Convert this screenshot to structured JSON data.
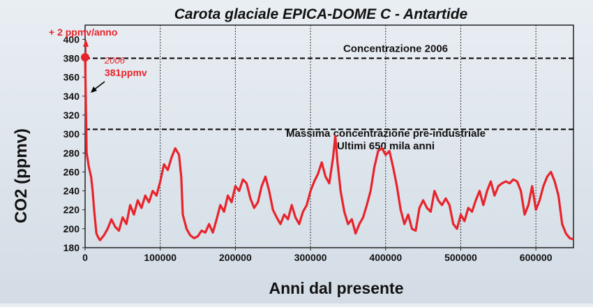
{
  "chart_data": {
    "type": "line",
    "title": "Carota glaciale EPICA-DOME C - Antartide",
    "xlabel": "Anni dal presente",
    "ylabel": "CO2 (ppmv)",
    "xlim": [
      0,
      650000
    ],
    "ylim": [
      180,
      400
    ],
    "x_ticks": [
      0,
      100000,
      200000,
      300000,
      400000,
      500000,
      600000
    ],
    "x_tick_labels": [
      "0",
      "100000",
      "200000",
      "300000",
      "400000",
      "500000",
      "600000"
    ],
    "y_ticks": [
      180,
      200,
      220,
      240,
      260,
      280,
      300,
      320,
      340,
      360,
      380,
      400
    ],
    "y_tick_labels": [
      "180",
      "200",
      "220",
      "240",
      "260",
      "280",
      "300",
      "320",
      "340",
      "360",
      "380",
      "400"
    ],
    "grid": "vertical dotted",
    "colors": {
      "series": "#e8232b",
      "reference": "#000000",
      "annotation": "#e8232b"
    },
    "series": [
      {
        "x": [
          0,
          2000,
          5000,
          8000,
          10000,
          12000,
          15000,
          18000,
          20000,
          25000,
          30000,
          35000,
          40000,
          45000,
          50000,
          55000,
          60000,
          65000,
          70000,
          75000,
          80000,
          85000,
          90000,
          95000,
          100000,
          105000,
          110000,
          115000,
          120000,
          125000,
          128000,
          130000,
          135000,
          140000,
          145000,
          150000,
          155000,
          160000,
          165000,
          170000,
          175000,
          180000,
          185000,
          190000,
          195000,
          200000,
          205000,
          210000,
          215000,
          220000,
          225000,
          230000,
          235000,
          240000,
          245000,
          250000,
          255000,
          260000,
          265000,
          270000,
          275000,
          280000,
          285000,
          290000,
          295000,
          300000,
          305000,
          310000,
          315000,
          320000,
          325000,
          330000,
          333000,
          336000,
          340000,
          345000,
          350000,
          355000,
          360000,
          365000,
          370000,
          375000,
          380000,
          385000,
          390000,
          395000,
          400000,
          405000,
          410000,
          415000,
          420000,
          425000,
          430000,
          435000,
          440000,
          445000,
          450000,
          455000,
          460000,
          465000,
          470000,
          475000,
          480000,
          485000,
          490000,
          495000,
          500000,
          505000,
          510000,
          515000,
          520000,
          525000,
          530000,
          535000,
          540000,
          545000,
          550000,
          555000,
          560000,
          565000,
          570000,
          575000,
          580000,
          585000,
          590000,
          595000,
          600000,
          605000,
          610000,
          615000,
          620000,
          625000,
          630000,
          635000,
          640000,
          645000,
          650000
        ],
        "values": [
          381,
          280,
          265,
          255,
          240,
          220,
          195,
          190,
          188,
          193,
          200,
          210,
          202,
          198,
          212,
          205,
          225,
          215,
          230,
          222,
          235,
          228,
          240,
          235,
          250,
          268,
          262,
          275,
          285,
          278,
          255,
          215,
          200,
          193,
          190,
          192,
          198,
          196,
          205,
          196,
          210,
          225,
          218,
          235,
          228,
          245,
          240,
          252,
          248,
          232,
          222,
          228,
          245,
          255,
          240,
          220,
          212,
          205,
          215,
          210,
          225,
          212,
          205,
          218,
          225,
          240,
          250,
          258,
          270,
          255,
          248,
          275,
          298,
          270,
          240,
          218,
          205,
          210,
          195,
          205,
          212,
          225,
          240,
          265,
          282,
          285,
          278,
          282,
          265,
          245,
          220,
          205,
          215,
          200,
          198,
          222,
          230,
          222,
          218,
          240,
          230,
          225,
          232,
          225,
          205,
          200,
          215,
          208,
          222,
          218,
          230,
          240,
          225,
          240,
          250,
          235,
          245,
          248,
          250,
          248,
          252,
          250,
          240,
          215,
          225,
          245,
          220,
          230,
          245,
          255,
          260,
          250,
          235,
          205,
          195,
          190,
          189
        ]
      }
    ],
    "reference_lines": [
      {
        "y": 380,
        "label": "Concentrazione 2006"
      },
      {
        "y": 305,
        "label": "Massima concentrazione pre-industriale",
        "label2": "Ultimi 650 mila anni"
      }
    ],
    "annotations": {
      "rate": "+ 2 ppmv/anno",
      "year": "2006",
      "value": "381ppmv"
    }
  }
}
